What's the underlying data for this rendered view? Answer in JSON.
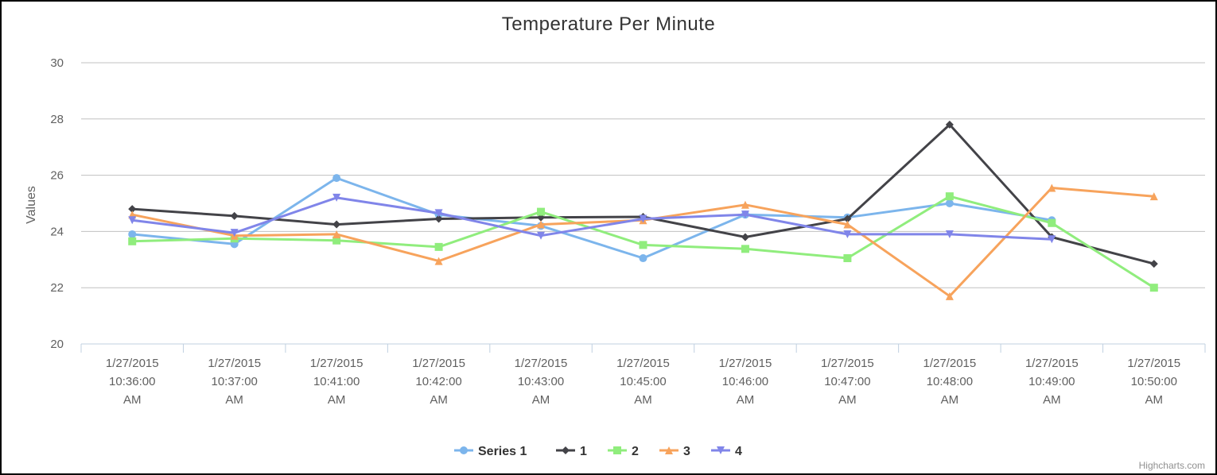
{
  "chart_data": {
    "type": "line",
    "title": "Temperature Per Minute",
    "ylabel": "Values",
    "xlabel": "",
    "ylim": [
      20,
      30
    ],
    "yticks": [
      20,
      22,
      24,
      26,
      28,
      30
    ],
    "grid": true,
    "legend_position": "bottom-center",
    "categories": [
      [
        "1/27/2015",
        "10:36:00",
        "AM"
      ],
      [
        "1/27/2015",
        "10:37:00",
        "AM"
      ],
      [
        "1/27/2015",
        "10:41:00",
        "AM"
      ],
      [
        "1/27/2015",
        "10:42:00",
        "AM"
      ],
      [
        "1/27/2015",
        "10:43:00",
        "AM"
      ],
      [
        "1/27/2015",
        "10:45:00",
        "AM"
      ],
      [
        "1/27/2015",
        "10:46:00",
        "AM"
      ],
      [
        "1/27/2015",
        "10:47:00",
        "AM"
      ],
      [
        "1/27/2015",
        "10:48:00",
        "AM"
      ],
      [
        "1/27/2015",
        "10:49:00",
        "AM"
      ],
      [
        "1/27/2015",
        "10:50:00",
        "AM"
      ]
    ],
    "series": [
      {
        "name": "Series 1",
        "color": "#7cb5ec",
        "marker": "circle",
        "values": [
          23.9,
          23.55,
          25.9,
          24.6,
          24.2,
          23.05,
          24.6,
          24.5,
          25.0,
          24.4,
          null
        ]
      },
      {
        "name": "1",
        "color": "#434348",
        "marker": "diamond",
        "values": [
          24.8,
          24.55,
          24.25,
          24.45,
          24.5,
          24.52,
          23.8,
          24.45,
          27.8,
          23.8,
          22.85
        ]
      },
      {
        "name": "2",
        "color": "#90ed7d",
        "marker": "square",
        "values": [
          23.65,
          23.75,
          23.68,
          23.45,
          24.7,
          23.52,
          23.38,
          23.05,
          25.25,
          24.3,
          22.0
        ]
      },
      {
        "name": "3",
        "color": "#f7a35c",
        "marker": "triangle",
        "values": [
          24.6,
          23.85,
          23.9,
          22.95,
          24.25,
          24.4,
          24.95,
          24.25,
          21.7,
          25.55,
          25.25
        ]
      },
      {
        "name": "4",
        "color": "#8085e9",
        "marker": "triangle-down",
        "values": [
          24.4,
          23.95,
          25.2,
          24.65,
          23.85,
          24.45,
          24.6,
          23.9,
          23.9,
          23.72,
          null
        ]
      }
    ]
  },
  "credits": "Highcharts.com"
}
